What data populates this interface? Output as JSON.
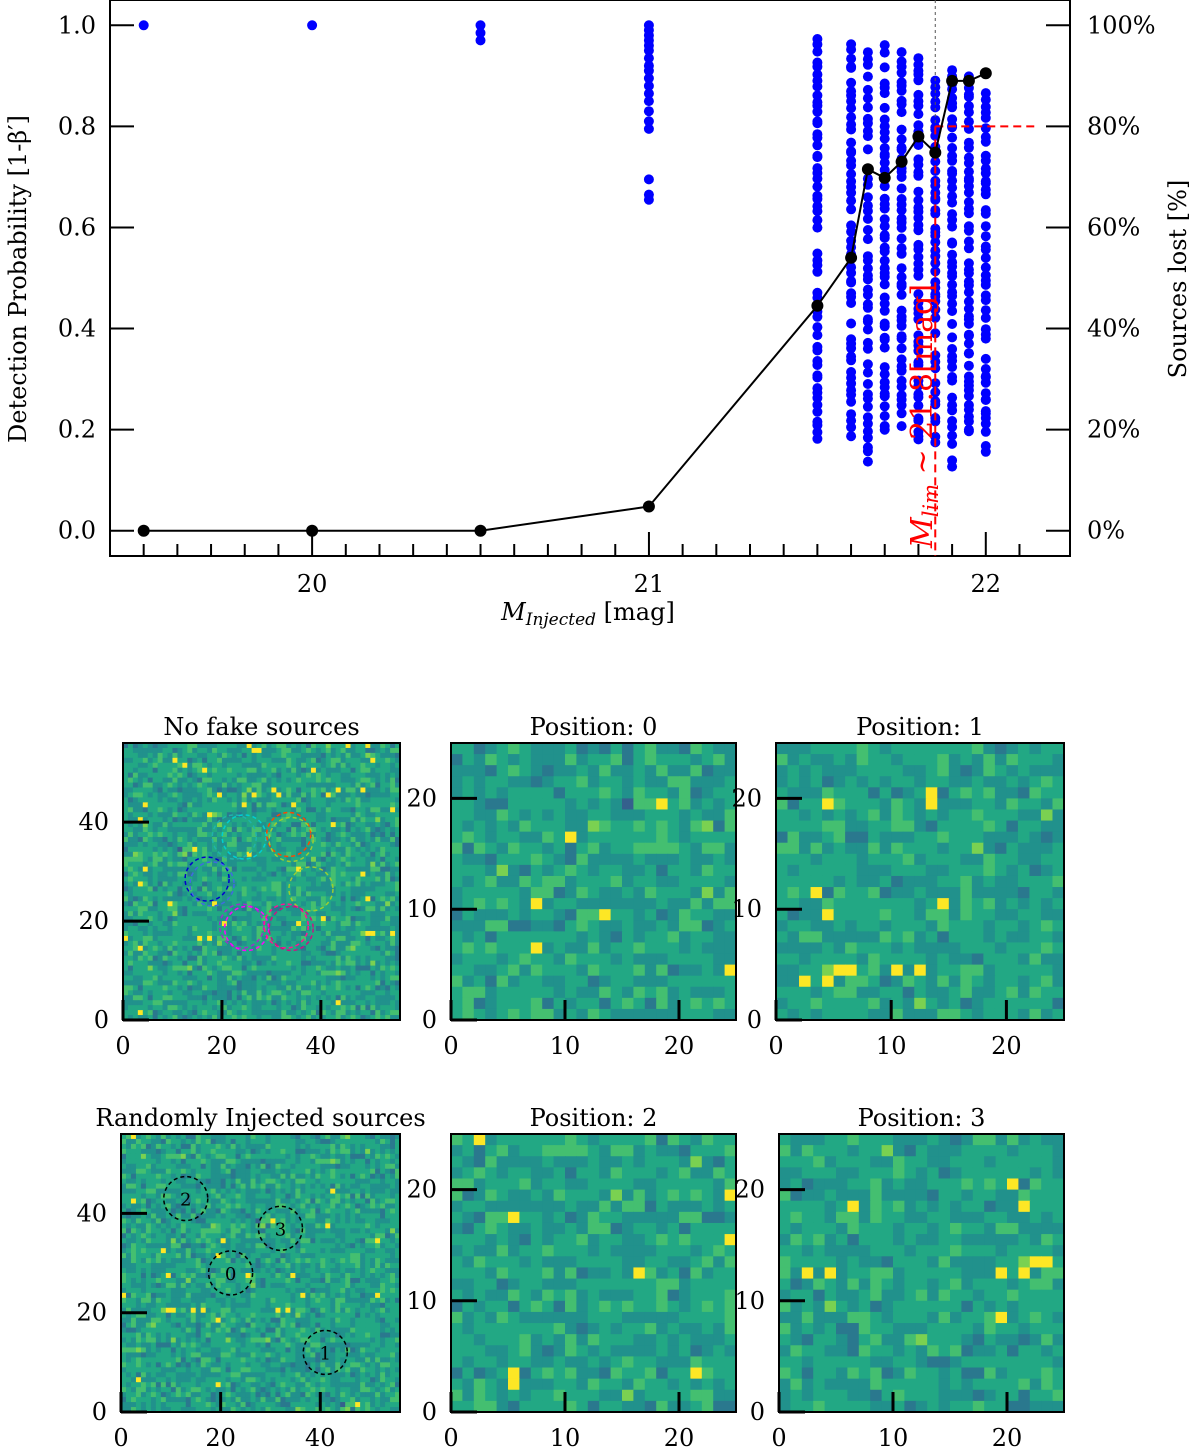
{
  "figure": {
    "main_chart": {
      "type": "scatter",
      "xlabel_main": "M",
      "xlabel_sub": "Injected",
      "xlabel_unit": " [mag]",
      "ylabel": "Detection Probability [1-β′]",
      "ylabel_right": "Sources lost [%]",
      "xlim": [
        19.4,
        22.25
      ],
      "ylim": [
        -0.05,
        1.05
      ],
      "xticks": [
        20,
        21,
        22
      ],
      "xtick_labels": [
        "20",
        "21",
        "22"
      ],
      "yticks": [
        0.0,
        0.2,
        0.4,
        0.6,
        0.8,
        1.0
      ],
      "ytick_labels": [
        "0.0",
        "0.2",
        "0.4",
        "0.6",
        "0.8",
        "1.0"
      ],
      "yticks_right_labels": [
        "0%",
        "20%",
        "40%",
        "60%",
        "80%",
        "100%"
      ],
      "annotation": {
        "text_main": "M",
        "text_sub": "lim",
        "text_rest": " ~ 21.8[mag]",
        "x": 21.85,
        "y_threshold": 0.8,
        "color": "#ff0000"
      },
      "colors": {
        "scatter": "#0000ff",
        "line": "#000000",
        "limit": "#ff0000"
      }
    },
    "panels": [
      {
        "title": "No fake sources",
        "xticks": [
          "0",
          "20",
          "40"
        ],
        "yticks": [
          "0",
          "20",
          "40"
        ],
        "range": 56
      },
      {
        "title": "Position: 0",
        "xticks": [
          "0",
          "10",
          "20"
        ],
        "yticks": [
          "0",
          "10",
          "20"
        ],
        "range": 25
      },
      {
        "title": "Position: 1",
        "xticks": [
          "0",
          "10",
          "20"
        ],
        "yticks": [
          "0",
          "10",
          "20"
        ],
        "range": 25
      },
      {
        "title": "Randomly Injected sources",
        "xticks": [
          "0",
          "20",
          "40"
        ],
        "yticks": [
          "0",
          "20",
          "40"
        ],
        "range": 56
      },
      {
        "title": "Position: 2",
        "xticks": [
          "0",
          "10",
          "20"
        ],
        "yticks": [
          "0",
          "10",
          "20"
        ],
        "range": 25
      },
      {
        "title": "Position: 3",
        "xticks": [
          "0",
          "10",
          "20"
        ],
        "yticks": [
          "0",
          "10",
          "20"
        ],
        "range": 25
      }
    ],
    "injected_labels": [
      "0",
      "1",
      "2",
      "3"
    ],
    "injected_positions": [
      [
        22,
        28
      ],
      [
        41,
        12
      ],
      [
        13,
        43
      ],
      [
        32,
        37
      ]
    ],
    "overlay_circles_no_fake": [
      {
        "x": 22.5,
        "y": 37,
        "color": "#20b2aa"
      },
      {
        "x": 24.5,
        "y": 37,
        "color": "#00ced1"
      },
      {
        "x": 33.5,
        "y": 37.5,
        "color": "#ff4500"
      },
      {
        "x": 34,
        "y": 36.5,
        "color": "#9acd32"
      },
      {
        "x": 17,
        "y": 28.5,
        "color": "#0000cd"
      },
      {
        "x": 18,
        "y": 27.5,
        "color": "#4169e1"
      },
      {
        "x": 38,
        "y": 26.5,
        "color": "#9acd32"
      },
      {
        "x": 24,
        "y": 19,
        "color": "#9932cc"
      },
      {
        "x": 25,
        "y": 18.5,
        "color": "#ff00ff"
      },
      {
        "x": 33,
        "y": 19,
        "color": "#ff1493"
      },
      {
        "x": 34,
        "y": 18.5,
        "color": "#c71585"
      }
    ]
  },
  "chart_data": {
    "type": "scatter",
    "xlabel": "M_Injected [mag]",
    "ylabel": "Detection Probability [1-β′]",
    "ylabel_right": "Sources lost [%]",
    "xlim": [
      19.4,
      22.25
    ],
    "ylim": [
      -0.05,
      1.05
    ],
    "grid": false,
    "series": [
      {
        "x": [
          19.5,
          20.0,
          20.5,
          21.0,
          21.5,
          21.6,
          21.65,
          21.7,
          21.75,
          21.8,
          21.85,
          21.9,
          21.95,
          22.0
        ],
        "values": [
          0.0,
          0.0,
          0.0,
          0.048,
          0.445,
          0.54,
          0.715,
          0.698,
          0.73,
          0.78,
          0.748,
          0.89,
          0.89,
          0.905
        ]
      },
      {
        "points": [
          [
            19.5,
            1.0
          ],
          [
            20.0,
            1.0
          ],
          [
            20.5,
            1.0
          ],
          [
            20.5,
            0.985
          ],
          [
            20.5,
            0.97
          ],
          [
            21.0,
            1.0
          ],
          [
            21.0,
            0.99
          ],
          [
            21.0,
            0.98
          ],
          [
            21.0,
            0.97
          ],
          [
            21.0,
            0.96
          ],
          [
            21.0,
            0.95
          ],
          [
            21.0,
            0.935
          ],
          [
            21.0,
            0.92
          ],
          [
            21.0,
            0.91
          ],
          [
            21.0,
            0.895
          ],
          [
            21.0,
            0.88
          ],
          [
            21.0,
            0.865
          ],
          [
            21.0,
            0.85
          ],
          [
            21.0,
            0.83
          ],
          [
            21.0,
            0.81
          ],
          [
            21.0,
            0.795
          ],
          [
            21.0,
            0.695
          ],
          [
            21.0,
            0.665
          ],
          [
            21.0,
            0.655
          ]
        ],
        "vertical_strips": [
          {
            "x": 21.5,
            "y_min": 0.18,
            "y_max": 0.985
          },
          {
            "x": 21.6,
            "y_min": 0.19,
            "y_max": 0.975
          },
          {
            "x": 21.65,
            "y_min": 0.14,
            "y_max": 0.965
          },
          {
            "x": 21.7,
            "y_min": 0.2,
            "y_max": 0.96
          },
          {
            "x": 21.75,
            "y_min": 0.17,
            "y_max": 0.955
          },
          {
            "x": 21.8,
            "y_min": 0.175,
            "y_max": 0.94
          },
          {
            "x": 21.85,
            "y_min": 0.18,
            "y_max": 0.895
          },
          {
            "x": 21.9,
            "y_min": 0.125,
            "y_max": 0.91
          },
          {
            "x": 21.95,
            "y_min": 0.18,
            "y_max": 0.9
          },
          {
            "x": 22.0,
            "y_min": 0.16,
            "y_max": 0.87
          }
        ]
      }
    ],
    "annotations": [
      "M_lim ~ 21.8[mag]"
    ]
  }
}
